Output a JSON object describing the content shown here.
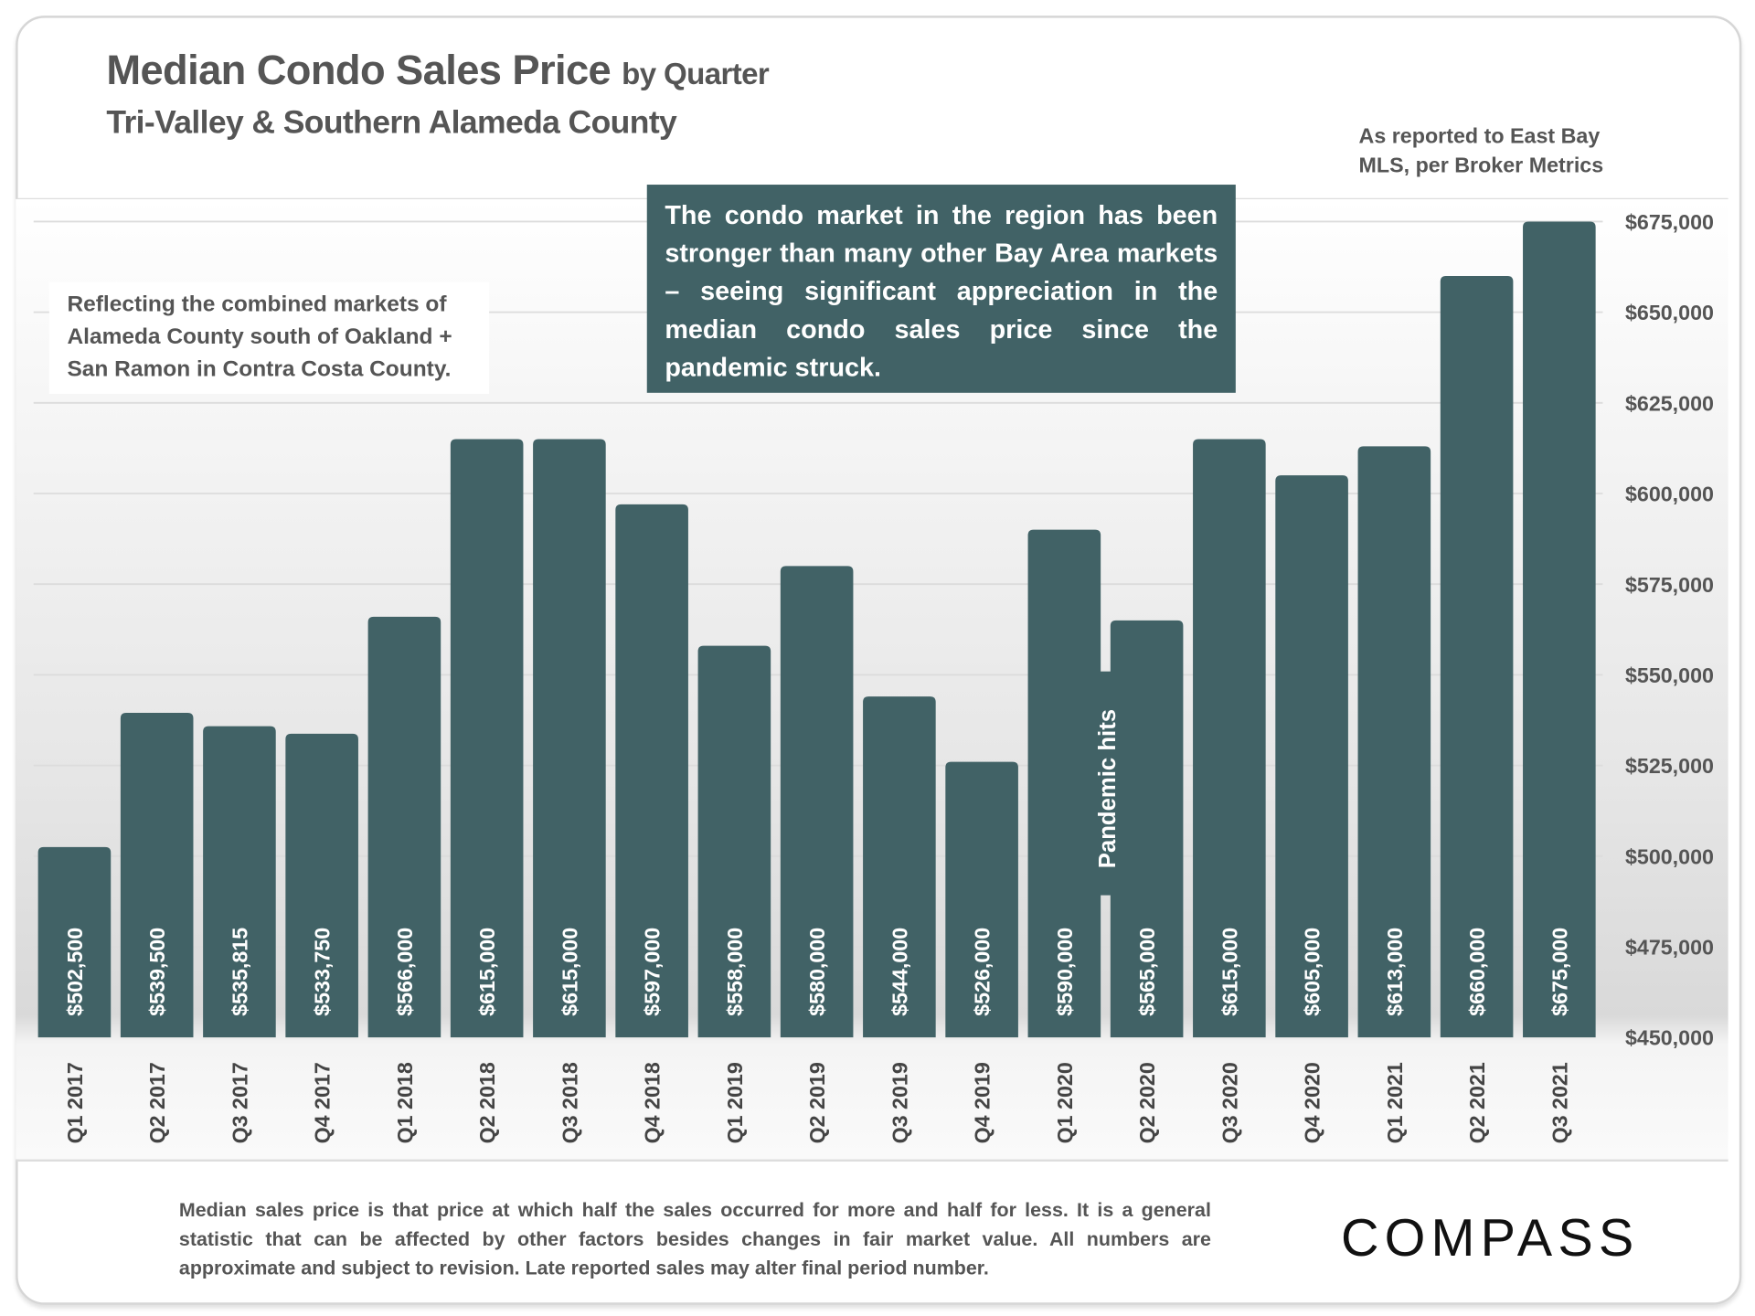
{
  "chart_data": {
    "type": "bar",
    "title": "Median Condo Sales Price",
    "title_suffix": "by Quarter",
    "subtitle": "Tri-Valley & Southern Alameda County",
    "source_note": "As reported to East Bay MLS, per Broker Metrics",
    "categories": [
      "Q1 2017",
      "Q2 2017",
      "Q3 2017",
      "Q4 2017",
      "Q1 2018",
      "Q2 2018",
      "Q3 2018",
      "Q4 2018",
      "Q1 2019",
      "Q2 2019",
      "Q3 2019",
      "Q4 2019",
      "Q1 2020",
      "Q2 2020",
      "Q3 2020",
      "Q4 2020",
      "Q1 2021",
      "Q2 2021",
      "Q3 2021"
    ],
    "values": [
      502500,
      539500,
      535815,
      533750,
      566000,
      615000,
      615000,
      597000,
      558000,
      580000,
      544000,
      526000,
      590000,
      565000,
      615000,
      605000,
      613000,
      660000,
      675000
    ],
    "data_labels": [
      "$502,500",
      "$539,500",
      "$535,815",
      "$533,750",
      "$566,000",
      "$615,000",
      "$615,000",
      "$597,000",
      "$558,000",
      "$580,000",
      "$544,000",
      "$526,000",
      "$590,000",
      "$565,000",
      "$615,000",
      "$605,000",
      "$613,000",
      "$660,000",
      "$675,000"
    ],
    "ylim": [
      450000,
      675000
    ],
    "yticks": [
      "$450,000",
      "$475,000",
      "$500,000",
      "$525,000",
      "$550,000",
      "$575,000",
      "$600,000",
      "$625,000",
      "$650,000",
      "$675,000"
    ],
    "y_axis_side": "right",
    "grid": true,
    "bar_color": "#416266",
    "annotations": {
      "pandemic": "Pandemic hits",
      "region_note": "Reflecting the combined markets of Alameda County south of Oakland + San Ramon in Contra Costa County.",
      "callout": "The condo market in the region has been stronger than many other Bay Area markets – seeing significant appreciation in the median condo sales price since the pandemic struck."
    }
  },
  "footer": {
    "disclaimer": "Median sales price is that price at which half the sales occurred for more and half for less. It is a general statistic that can be affected by other factors besides changes in fair market value. All numbers are approximate and subject to revision. Late reported sales may alter final period number.",
    "logo": "COMPASS"
  }
}
